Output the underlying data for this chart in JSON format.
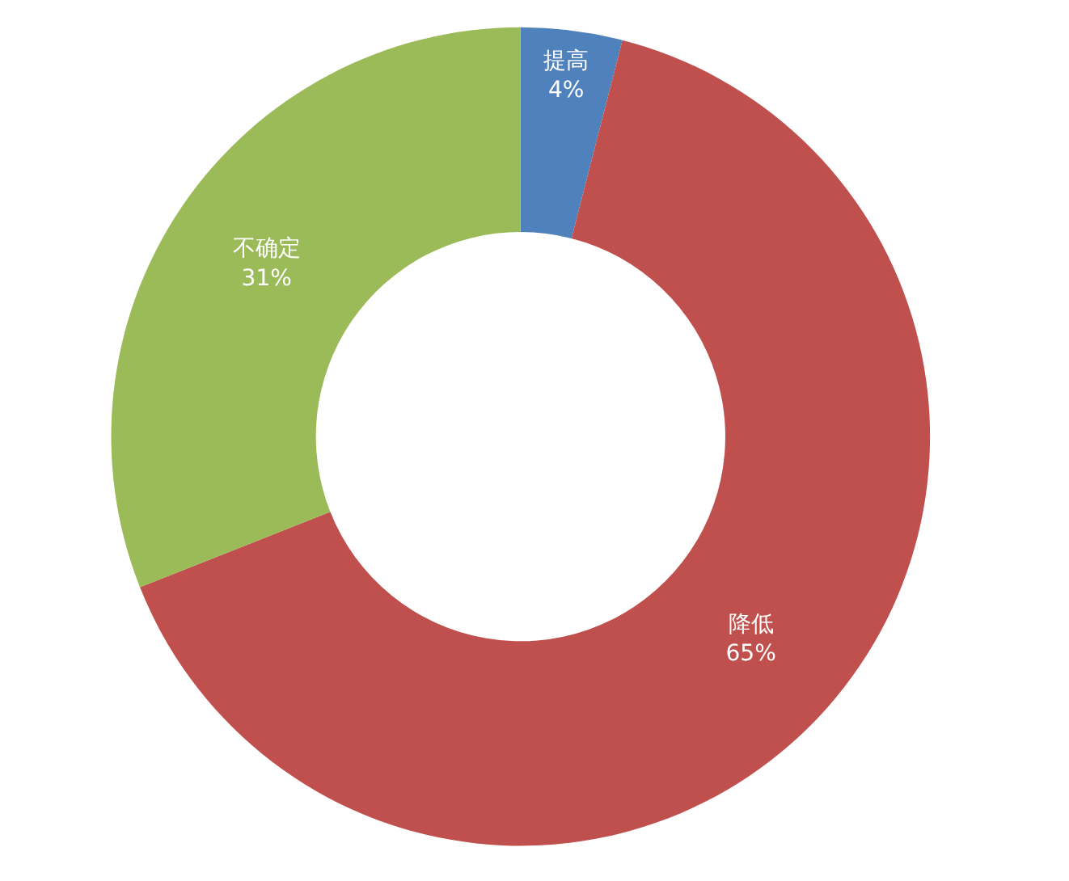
{
  "chart_data": {
    "type": "donut",
    "categories": [
      "提高",
      "降低",
      "不确定"
    ],
    "values": [
      4,
      65,
      31
    ],
    "value_labels": [
      "4%",
      "65%",
      "31%"
    ],
    "colors": [
      "#4f81bd",
      "#c0504d",
      "#9bbb59"
    ],
    "legend": false
  }
}
